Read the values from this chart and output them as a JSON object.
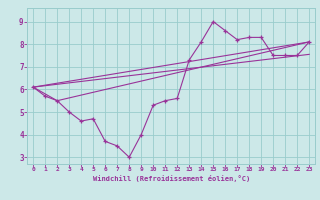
{
  "xlabel": "Windchill (Refroidissement éolien,°C)",
  "background_color": "#cce8e8",
  "line_color": "#993399",
  "grid_color": "#99cccc",
  "xlim": [
    -0.5,
    23.5
  ],
  "ylim": [
    2.7,
    9.6
  ],
  "xticks": [
    0,
    1,
    2,
    3,
    4,
    5,
    6,
    7,
    8,
    9,
    10,
    11,
    12,
    13,
    14,
    15,
    16,
    17,
    18,
    19,
    20,
    21,
    22,
    23
  ],
  "yticks": [
    3,
    4,
    5,
    6,
    7,
    8,
    9
  ],
  "line1_x": [
    0,
    1,
    2,
    3,
    4,
    5,
    6,
    7,
    8,
    9,
    10,
    11,
    12,
    13,
    14,
    15,
    16,
    17,
    18,
    19,
    20,
    21,
    22,
    23
  ],
  "line1_y": [
    6.1,
    5.7,
    5.5,
    5.0,
    4.6,
    4.7,
    3.7,
    3.5,
    3.0,
    4.0,
    5.3,
    5.5,
    5.6,
    7.3,
    8.1,
    9.0,
    8.6,
    8.2,
    8.3,
    8.3,
    7.5,
    7.5,
    7.5,
    8.1
  ],
  "line2_x": [
    0,
    23
  ],
  "line2_y": [
    6.1,
    7.55
  ],
  "line3_x": [
    0,
    23
  ],
  "line3_y": [
    6.1,
    8.1
  ],
  "line4_x": [
    0,
    2,
    23
  ],
  "line4_y": [
    6.1,
    5.5,
    8.1
  ]
}
